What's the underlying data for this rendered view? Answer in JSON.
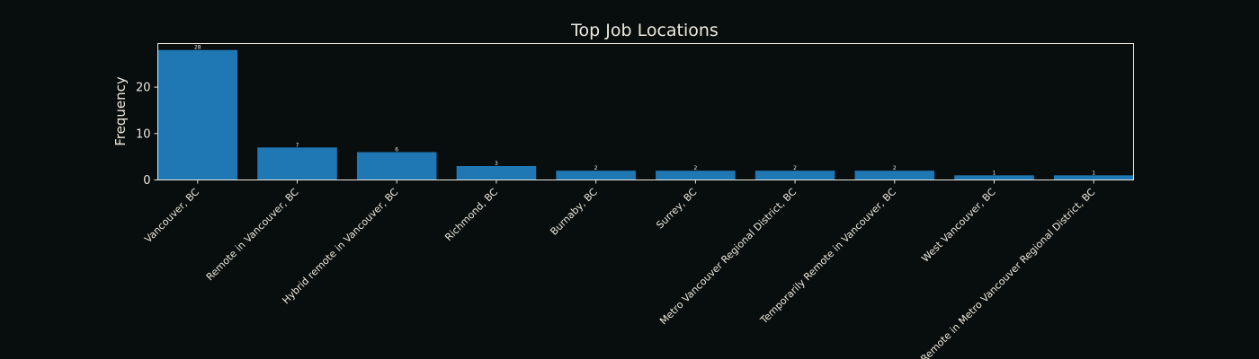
{
  "chart_data": {
    "type": "bar",
    "title": "Top Job Locations",
    "xlabel": "",
    "ylabel": "Frequency",
    "ylim": [
      0,
      29.4
    ],
    "yticks": [
      0,
      10,
      20
    ],
    "grid": false,
    "bar_color": "#1f77b4",
    "background_color": "#080d0e",
    "text_color": "#ece9dc",
    "categories": [
      "Vancouver, BC",
      "Remote in Vancouver, BC",
      "Hybrid remote in Vancouver, BC",
      "Richmond, BC",
      "Burnaby, BC",
      "Surrey, BC",
      "Metro Vancouver Regional District, BC",
      "Temporarily Remote in Vancouver, BC",
      "West Vancouver, BC",
      "Remote in Metro Vancouver Regional District, BC"
    ],
    "values": [
      28,
      7,
      6,
      3,
      2,
      2,
      2,
      2,
      1,
      1
    ],
    "data_labels": [
      "28",
      "7",
      "6",
      "3",
      "2",
      "2",
      "2",
      "2",
      "1",
      "1"
    ]
  }
}
